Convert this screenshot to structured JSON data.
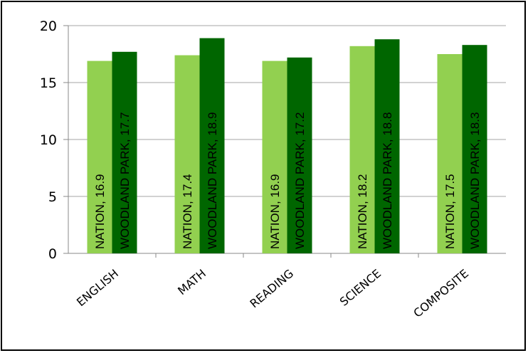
{
  "chart_data": {
    "type": "bar",
    "title": "",
    "xlabel": "",
    "ylabel": "",
    "categories": [
      "ENGLISH",
      "MATH",
      "READING",
      "SCIENCE",
      "COMPOSITE"
    ],
    "series": [
      {
        "name": "NATION",
        "values": [
          16.9,
          17.4,
          16.9,
          18.2,
          17.5
        ],
        "color": "#92d050"
      },
      {
        "name": "WOODLAND PARK",
        "values": [
          17.7,
          18.9,
          17.2,
          18.8,
          18.3
        ],
        "color": "#006600"
      }
    ],
    "ylim": [
      0,
      20
    ],
    "yticks": [
      "0",
      "5",
      "10",
      "15",
      "20"
    ],
    "grid": true,
    "legend": "none",
    "data_labels": [
      [
        "NATION, 16.9",
        "NATION, 17.4",
        "NATION, 16.9",
        "NATION, 18.2",
        "NATION, 17.5"
      ],
      [
        "WOODLAND PARK, 17.7",
        "WOODLAND PARK, 18.9",
        "WOODLAND PARK, 17.2",
        "WOODLAND PARK, 18.8",
        "WOODLAND PARK, 18.3"
      ]
    ],
    "gridline_color": "#a6a6a6",
    "axis_color": "#888888"
  }
}
